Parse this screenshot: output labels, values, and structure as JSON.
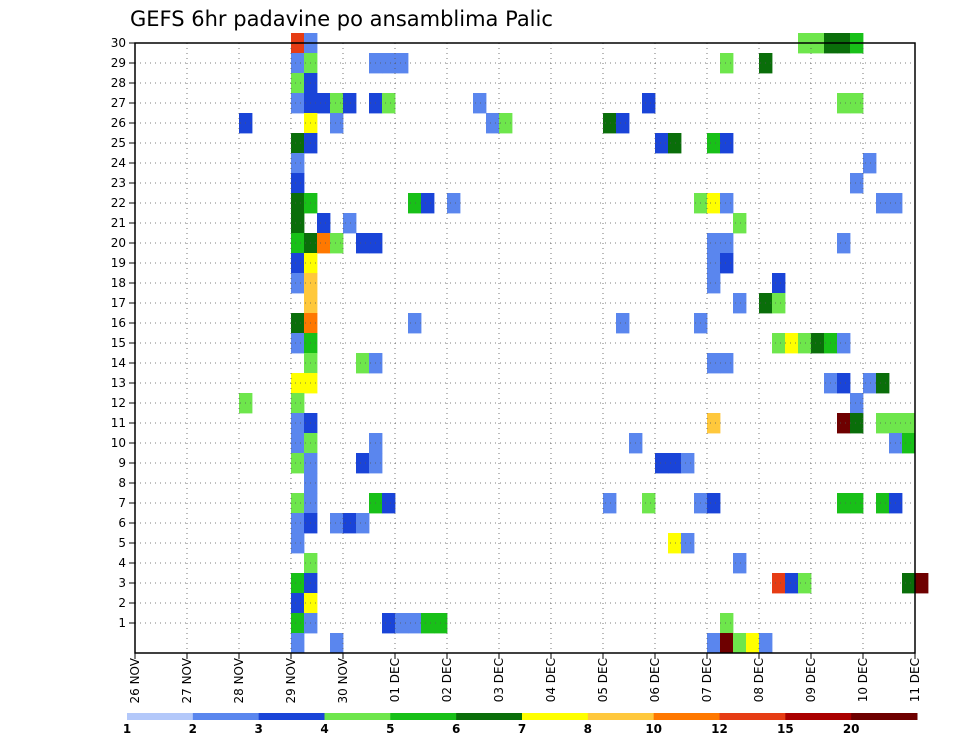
{
  "chart_data": {
    "type": "heatmap",
    "title": "GEFS 6hr padavine po ansamblima Palic",
    "x_tick_labels": [
      "26 NOV",
      "27 NOV",
      "28 NOV",
      "29 NOV",
      "30 NOV",
      "01 DEC",
      "02 DEC",
      "03 DEC",
      "04 DEC",
      "05 DEC",
      "06 DEC",
      "07 DEC",
      "08 DEC",
      "09 DEC",
      "10 DEC",
      "11 DEC"
    ],
    "x_range_days": [
      0,
      15
    ],
    "y_tick_labels": [
      "1",
      "2",
      "3",
      "4",
      "5",
      "6",
      "7",
      "8",
      "9",
      "10",
      "11",
      "12",
      "13",
      "14",
      "15",
      "16",
      "17",
      "18",
      "19",
      "20",
      "21",
      "22",
      "23",
      "24",
      "25",
      "26",
      "27",
      "28",
      "29",
      "30"
    ],
    "y_range": [
      0,
      30
    ],
    "grid": "dotted",
    "colorbar": {
      "levels": [
        "1",
        "2",
        "3",
        "4",
        "5",
        "6",
        "7",
        "8",
        "10",
        "12",
        "15",
        "20"
      ],
      "colors": [
        "#b3c8fa",
        "#5a86ee",
        "#1a44d8",
        "#6ee64c",
        "#18c018",
        "#0a6e0a",
        "#ffff00",
        "#ffc83c",
        "#ff7800",
        "#e63c14",
        "#aa0000",
        "#6e0000"
      ]
    },
    "cells": [
      [
        3.0,
        30,
        9
      ],
      [
        3.25,
        30,
        1
      ],
      [
        12.75,
        30,
        3
      ],
      [
        13.0,
        30,
        3
      ],
      [
        13.25,
        30,
        5
      ],
      [
        13.5,
        30,
        5
      ],
      [
        13.75,
        30,
        4
      ],
      [
        3.0,
        29,
        1
      ],
      [
        3.25,
        29,
        3
      ],
      [
        4.5,
        29,
        1
      ],
      [
        4.75,
        29,
        1
      ],
      [
        5.0,
        29,
        1
      ],
      [
        11.25,
        29,
        3
      ],
      [
        12.0,
        29,
        5
      ],
      [
        3.0,
        28,
        3
      ],
      [
        3.25,
        28,
        2
      ],
      [
        3.0,
        27,
        1
      ],
      [
        3.25,
        27,
        2
      ],
      [
        3.5,
        27,
        2
      ],
      [
        3.75,
        27,
        3
      ],
      [
        4.0,
        27,
        2
      ],
      [
        4.5,
        27,
        2
      ],
      [
        4.75,
        27,
        3
      ],
      [
        6.5,
        27,
        1
      ],
      [
        9.75,
        27,
        2
      ],
      [
        13.5,
        27,
        3
      ],
      [
        13.75,
        27,
        3
      ],
      [
        2.0,
        26,
        2
      ],
      [
        3.25,
        26,
        6
      ],
      [
        3.75,
        26,
        1
      ],
      [
        6.75,
        26,
        1
      ],
      [
        7.0,
        26,
        3
      ],
      [
        9.0,
        26,
        5
      ],
      [
        9.25,
        26,
        2
      ],
      [
        3.0,
        25,
        5
      ],
      [
        3.25,
        25,
        2
      ],
      [
        10.0,
        25,
        2
      ],
      [
        10.25,
        25,
        5
      ],
      [
        11.0,
        25,
        4
      ],
      [
        11.25,
        25,
        2
      ],
      [
        3.0,
        24,
        1
      ],
      [
        14.0,
        24,
        1
      ],
      [
        3.0,
        23,
        2
      ],
      [
        13.75,
        23,
        1
      ],
      [
        3.0,
        22,
        5
      ],
      [
        3.25,
        22,
        4
      ],
      [
        5.25,
        22,
        4
      ],
      [
        5.5,
        22,
        2
      ],
      [
        6.0,
        22,
        1
      ],
      [
        10.75,
        22,
        3
      ],
      [
        11.0,
        22,
        6
      ],
      [
        11.25,
        22,
        1
      ],
      [
        14.25,
        22,
        1
      ],
      [
        14.5,
        22,
        1
      ],
      [
        3.0,
        21,
        5
      ],
      [
        3.5,
        21,
        2
      ],
      [
        4.0,
        21,
        1
      ],
      [
        11.5,
        21,
        3
      ],
      [
        3.0,
        20,
        4
      ],
      [
        3.25,
        20,
        5
      ],
      [
        3.5,
        20,
        8
      ],
      [
        3.75,
        20,
        3
      ],
      [
        4.25,
        20,
        2
      ],
      [
        4.5,
        20,
        2
      ],
      [
        11.0,
        20,
        1
      ],
      [
        11.25,
        20,
        1
      ],
      [
        13.5,
        20,
        1
      ],
      [
        3.0,
        19,
        2
      ],
      [
        3.25,
        19,
        6
      ],
      [
        11.0,
        19,
        1
      ],
      [
        11.25,
        19,
        2
      ],
      [
        3.0,
        18,
        1
      ],
      [
        3.25,
        18,
        7
      ],
      [
        11.0,
        18,
        1
      ],
      [
        12.25,
        18,
        2
      ],
      [
        3.25,
        17,
        7
      ],
      [
        11.5,
        17,
        1
      ],
      [
        12.0,
        17,
        5
      ],
      [
        12.25,
        17,
        3
      ],
      [
        3.0,
        16,
        5
      ],
      [
        3.25,
        16,
        8
      ],
      [
        5.25,
        16,
        1
      ],
      [
        9.25,
        16,
        1
      ],
      [
        10.75,
        16,
        1
      ],
      [
        3.0,
        15,
        1
      ],
      [
        3.25,
        15,
        4
      ],
      [
        12.25,
        15,
        3
      ],
      [
        12.5,
        15,
        6
      ],
      [
        12.75,
        15,
        3
      ],
      [
        13.0,
        15,
        5
      ],
      [
        13.25,
        15,
        4
      ],
      [
        13.5,
        15,
        1
      ],
      [
        3.25,
        14,
        3
      ],
      [
        4.25,
        14,
        3
      ],
      [
        4.5,
        14,
        1
      ],
      [
        11.0,
        14,
        1
      ],
      [
        11.25,
        14,
        1
      ],
      [
        3.0,
        13,
        6
      ],
      [
        3.25,
        13,
        6
      ],
      [
        13.25,
        13,
        1
      ],
      [
        13.5,
        13,
        2
      ],
      [
        14.0,
        13,
        1
      ],
      [
        14.25,
        13,
        5
      ],
      [
        2.0,
        12,
        3
      ],
      [
        3.0,
        12,
        3
      ],
      [
        13.75,
        12,
        1
      ],
      [
        3.0,
        11,
        1
      ],
      [
        3.25,
        11,
        2
      ],
      [
        11.0,
        11,
        7
      ],
      [
        13.5,
        11,
        11
      ],
      [
        13.75,
        11,
        5
      ],
      [
        14.25,
        11,
        3
      ],
      [
        14.5,
        11,
        3
      ],
      [
        14.75,
        11,
        3
      ],
      [
        3.0,
        10,
        1
      ],
      [
        3.25,
        10,
        3
      ],
      [
        4.5,
        10,
        1
      ],
      [
        9.5,
        10,
        1
      ],
      [
        14.5,
        10,
        1
      ],
      [
        14.75,
        10,
        4
      ],
      [
        3.0,
        9,
        3
      ],
      [
        3.25,
        9,
        1
      ],
      [
        4.25,
        9,
        2
      ],
      [
        4.5,
        9,
        1
      ],
      [
        10.0,
        9,
        2
      ],
      [
        10.25,
        9,
        2
      ],
      [
        10.5,
        9,
        1
      ],
      [
        3.25,
        8,
        1
      ],
      [
        3.0,
        7,
        3
      ],
      [
        3.25,
        7,
        1
      ],
      [
        4.5,
        7,
        4
      ],
      [
        4.75,
        7,
        2
      ],
      [
        9.0,
        7,
        1
      ],
      [
        9.75,
        7,
        3
      ],
      [
        10.75,
        7,
        1
      ],
      [
        11.0,
        7,
        2
      ],
      [
        13.5,
        7,
        4
      ],
      [
        13.75,
        7,
        4
      ],
      [
        14.25,
        7,
        4
      ],
      [
        14.5,
        7,
        2
      ],
      [
        3.0,
        6,
        1
      ],
      [
        3.25,
        6,
        2
      ],
      [
        3.75,
        6,
        1
      ],
      [
        4.0,
        6,
        2
      ],
      [
        4.25,
        6,
        1
      ],
      [
        3.0,
        5,
        1
      ],
      [
        10.25,
        5,
        6
      ],
      [
        10.5,
        5,
        1
      ],
      [
        3.25,
        4,
        3
      ],
      [
        11.5,
        4,
        1
      ],
      [
        3.0,
        3,
        4
      ],
      [
        3.25,
        3,
        2
      ],
      [
        12.25,
        3,
        9
      ],
      [
        12.5,
        3,
        2
      ],
      [
        12.75,
        3,
        3
      ],
      [
        14.75,
        3,
        5
      ],
      [
        15.0,
        3,
        11
      ],
      [
        3.0,
        2,
        2
      ],
      [
        3.25,
        2,
        6
      ],
      [
        3.0,
        1,
        4
      ],
      [
        3.25,
        1,
        1
      ],
      [
        4.75,
        1,
        2
      ],
      [
        5.0,
        1,
        1
      ],
      [
        5.25,
        1,
        1
      ],
      [
        5.5,
        1,
        4
      ],
      [
        5.75,
        1,
        4
      ],
      [
        11.25,
        1,
        3
      ],
      [
        3.0,
        0,
        1
      ],
      [
        3.75,
        0,
        1
      ],
      [
        11.0,
        0,
        1
      ],
      [
        11.25,
        0,
        11
      ],
      [
        11.5,
        0,
        3
      ],
      [
        11.75,
        0,
        6
      ],
      [
        12.0,
        0,
        1
      ]
    ]
  }
}
